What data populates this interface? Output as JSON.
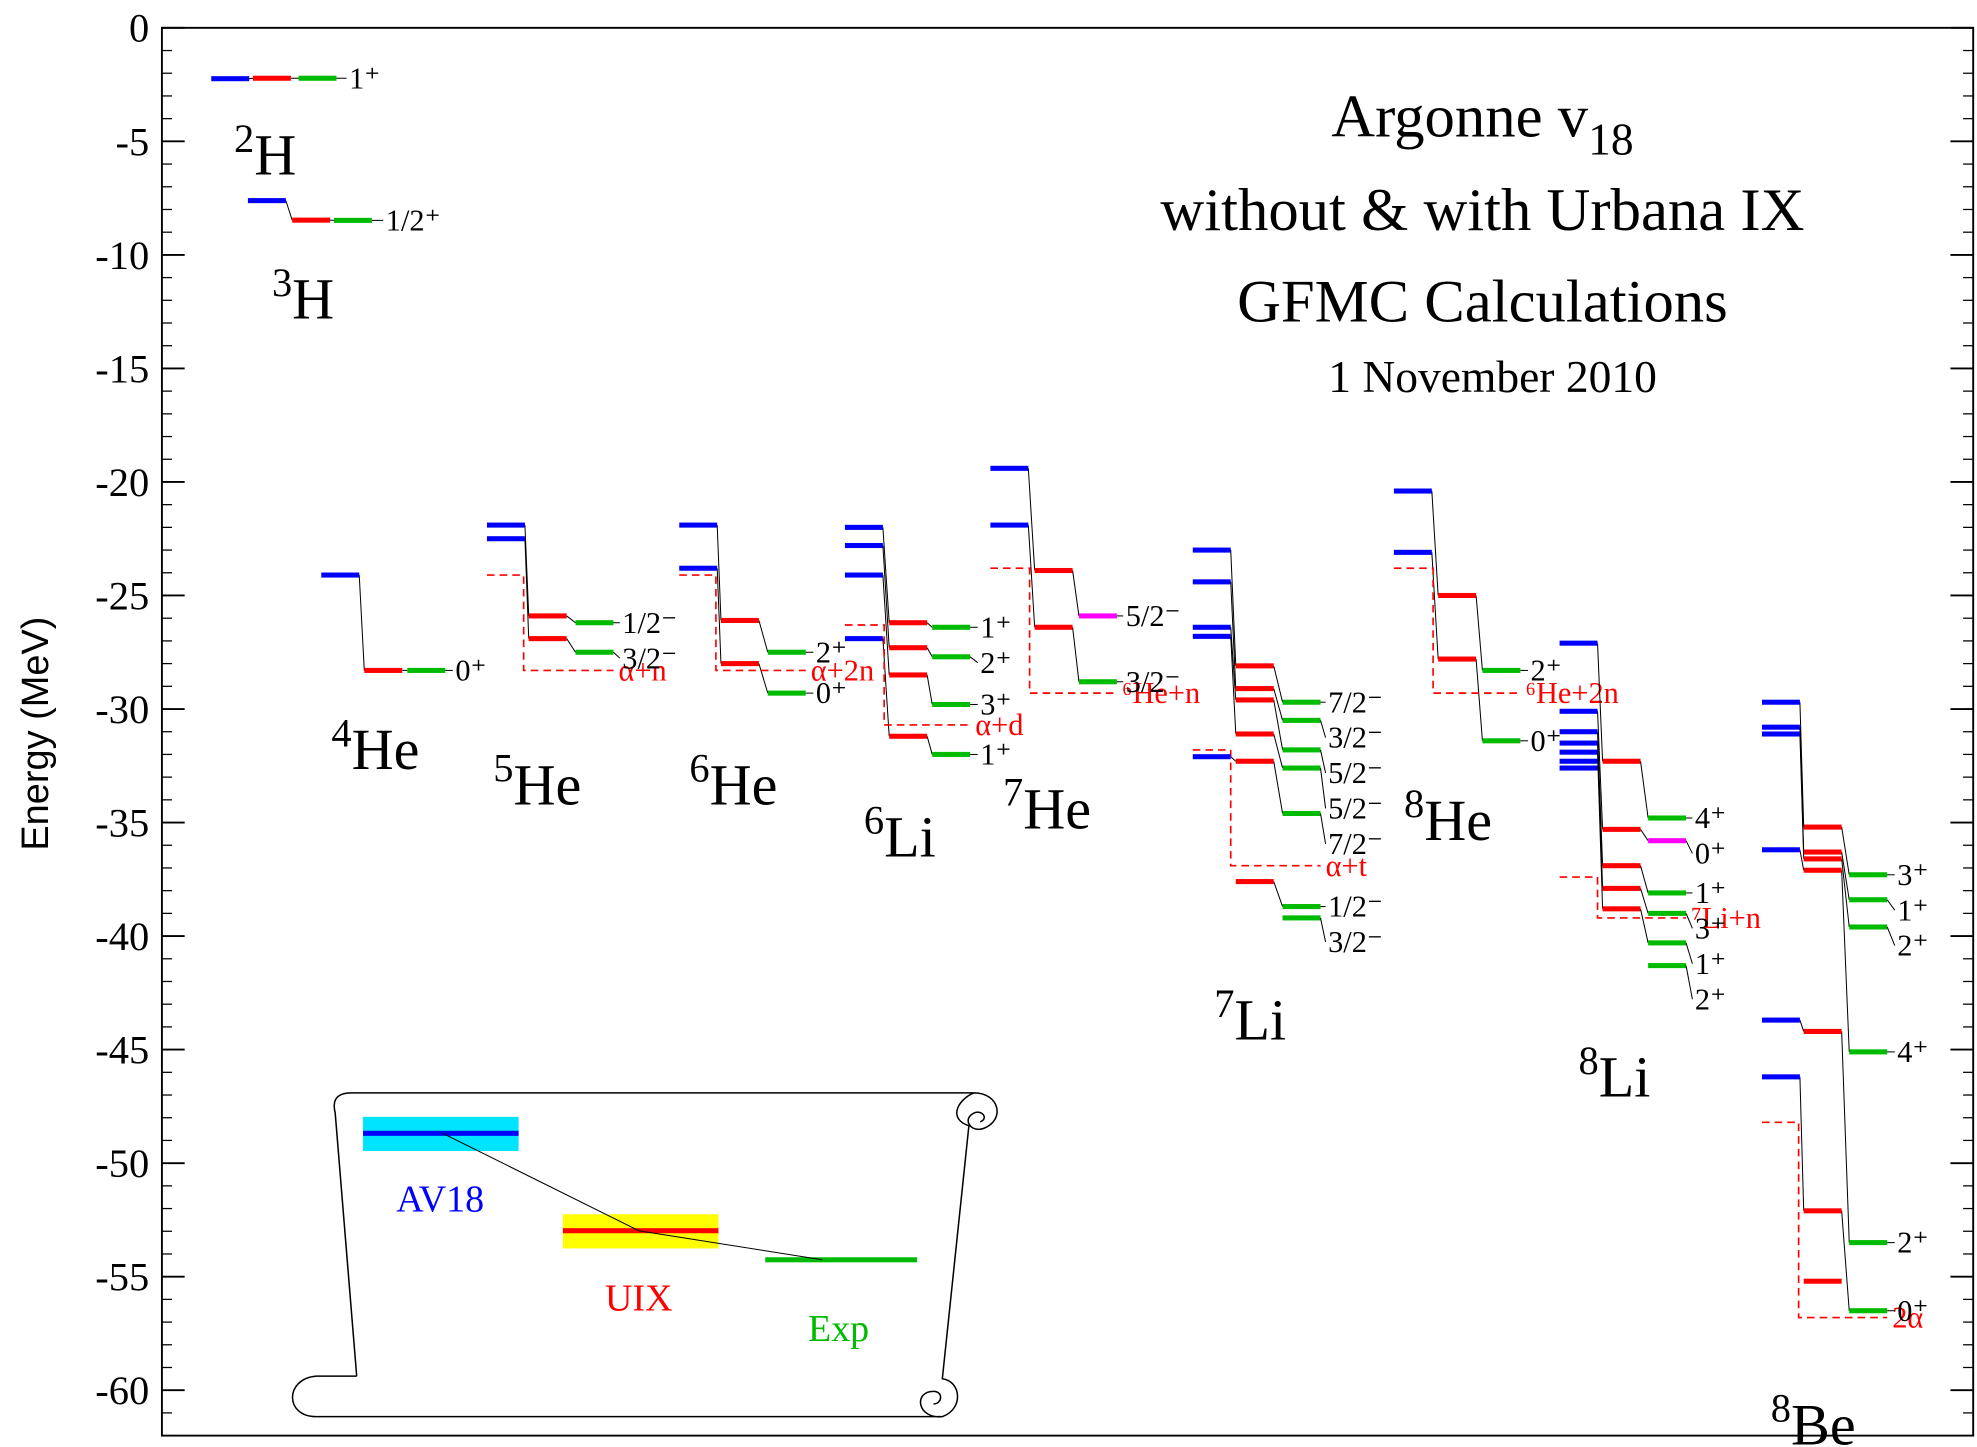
{
  "chart_data": {
    "type": "level",
    "title": "Argonne v",
    "title_subscript": "18",
    "subtitle_lines": [
      "without & with Urbana IX",
      "GFMC Calculations",
      "1 November 2010"
    ],
    "y_label": "Energy (MeV)",
    "ylim": [
      -62,
      0
    ],
    "yticks": [
      0,
      -5,
      -10,
      -15,
      -20,
      -25,
      -30,
      -35,
      -40,
      -45,
      -50,
      -55,
      -60
    ],
    "methods": [
      {
        "name": "AV18",
        "color": "#0000ff",
        "band": "#00e5ff"
      },
      {
        "name": "UIX",
        "color": "#ff0000",
        "band": "#ffff00"
      },
      {
        "name": "Exp",
        "color": "#00bb00"
      }
    ],
    "nuclei": [
      {
        "mass": "2",
        "symbol": "H",
        "av18": [
          -2.24
        ],
        "uix": [
          -2.22
        ],
        "exp": [
          -2.22
        ],
        "exp_labels": [
          "1⁺"
        ]
      },
      {
        "mass": "3",
        "symbol": "H",
        "av18": [
          -7.61
        ],
        "uix": [
          -8.47
        ],
        "exp": [
          -8.48
        ],
        "exp_labels": [
          "1/2⁺"
        ]
      },
      {
        "mass": "4",
        "symbol": "He",
        "av18": [
          -24.1
        ],
        "uix": [
          -28.3
        ],
        "exp": [
          -28.3
        ],
        "exp_labels": [
          "0⁺"
        ]
      },
      {
        "mass": "5",
        "symbol": "He",
        "av18": [
          -21.9,
          -22.5
        ],
        "uix": [
          -25.9,
          -26.9
        ],
        "exp": [
          -26.2,
          -27.5
        ],
        "exp_labels": [
          "1/2⁻",
          "3/2⁻"
        ],
        "threshold": {
          "label": "α+n",
          "values": [
            -24.1,
            -28.3
          ]
        }
      },
      {
        "mass": "6",
        "symbol": "He",
        "av18": [
          -21.9,
          -23.8
        ],
        "uix": [
          -26.1,
          -28.0
        ],
        "exp": [
          -27.5,
          -29.3
        ],
        "exp_labels": [
          "2⁺",
          "0⁺"
        ],
        "threshold": {
          "label": "α+2n",
          "values": [
            -24.1,
            -28.3
          ]
        }
      },
      {
        "mass": "6",
        "symbol": "Li",
        "av18": [
          -22.0,
          -22.8,
          -24.1,
          -26.9
        ],
        "uix": [
          -26.2,
          -27.3,
          -28.5,
          -31.2
        ],
        "exp": [
          -26.4,
          -27.7,
          -29.8,
          -32.0
        ],
        "exp_labels": [
          "1⁺",
          "2⁺",
          "3⁺",
          "1⁺"
        ],
        "threshold": {
          "label": "α+d",
          "values": [
            -26.3,
            -30.7
          ]
        }
      },
      {
        "mass": "7",
        "symbol": "He",
        "av18": [
          -19.4,
          -21.9
        ],
        "uix": [
          -23.9,
          -26.4
        ],
        "exp": [
          -25.9,
          -28.8
        ],
        "exp_labels": [
          "5/2⁻",
          "3/2⁻"
        ],
        "exp_highlight": {
          "index": 0,
          "color": "#ff00ff"
        },
        "threshold": {
          "label": "⁶He+n",
          "values": [
            -23.8,
            -29.3
          ]
        }
      },
      {
        "mass": "7",
        "symbol": "Li",
        "av18": [
          -23.0,
          -24.4,
          -26.4,
          -26.8,
          -32.1
        ],
        "uix": [
          -28.1,
          -29.1,
          -29.6,
          -31.1,
          -32.3,
          -37.6
        ],
        "exp": [
          -29.7,
          -30.5,
          -31.8,
          -32.6,
          -34.6,
          -38.7,
          -39.2
        ],
        "exp_labels": [
          "7/2⁻",
          "3/2⁻",
          "5/2⁻",
          "5/2⁻",
          "7/2⁻",
          "1/2⁻",
          "3/2⁻"
        ],
        "threshold": {
          "label": "α+t",
          "values": [
            -31.8,
            -36.9
          ]
        }
      },
      {
        "mass": "8",
        "symbol": "He",
        "av18": [
          -20.4,
          -23.1
        ],
        "uix": [
          -25.0,
          -27.8
        ],
        "exp": [
          -28.3,
          -31.4
        ],
        "exp_labels": [
          "2⁺",
          "0⁺"
        ],
        "threshold": {
          "label": "⁶He+2n",
          "values": [
            -23.8,
            -29.3
          ]
        }
      },
      {
        "mass": "8",
        "symbol": "Li",
        "av18": [
          -27.1,
          -30.1,
          -31.0,
          -31.5,
          -31.9,
          -32.3,
          -32.6
        ],
        "uix": [
          -32.3,
          -35.3,
          -36.9,
          -37.9,
          -38.8
        ],
        "exp": [
          -34.8,
          -35.8,
          -38.1,
          -39.0,
          -40.3,
          -41.3
        ],
        "exp_labels": [
          "4⁺",
          "0⁺",
          "1⁺",
          "3⁺",
          "1⁺",
          "2⁺"
        ],
        "exp_highlight": {
          "index": 1,
          "color": "#ff00ff"
        },
        "threshold": {
          "label": "⁷Li+n",
          "values": [
            -37.4,
            -39.2
          ]
        }
      },
      {
        "mass": "8",
        "symbol": "Be",
        "av18": [
          -29.7,
          -30.8,
          -31.1,
          -36.2,
          -43.7,
          -46.2
        ],
        "uix": [
          -35.2,
          -36.3,
          -36.6,
          -37.1,
          -44.2,
          -52.1,
          -55.2
        ],
        "exp": [
          -37.3,
          -38.4,
          -39.6,
          -45.1,
          -53.5,
          -56.5
        ],
        "exp_labels": [
          "3⁺",
          "1⁺",
          "2⁺",
          "4⁺",
          "2⁺",
          "0⁺"
        ],
        "threshold": {
          "label": "2α",
          "values": [
            -48.2,
            -56.8
          ]
        }
      }
    ]
  }
}
